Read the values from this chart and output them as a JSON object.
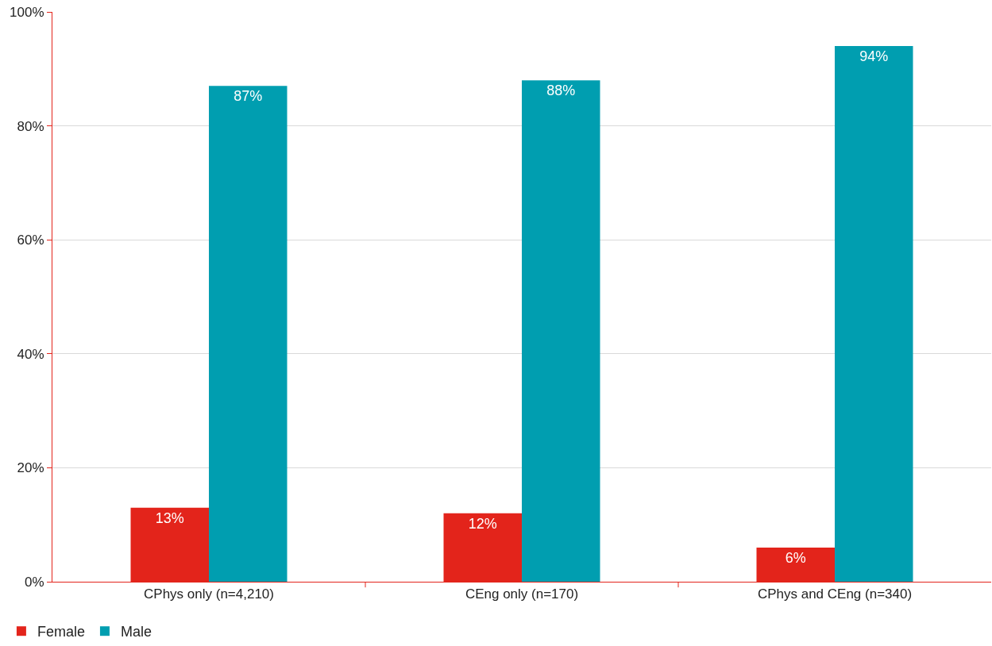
{
  "chart_data": {
    "type": "bar",
    "categories": [
      "CPhys only (n=4,210)",
      "CEng only (n=170)",
      "CPhys and CEng (n=340)"
    ],
    "series": [
      {
        "name": "Female",
        "color": "#e3241b",
        "values": [
          13,
          12,
          6
        ],
        "value_labels": [
          "13%",
          "12%",
          "6%"
        ]
      },
      {
        "name": "Male",
        "color": "#009eb0",
        "values": [
          87,
          88,
          94
        ],
        "value_labels": [
          "87%",
          "88%",
          "94%"
        ]
      }
    ],
    "ylim": [
      0,
      100
    ],
    "yticks": [
      {
        "value": 0,
        "label": "0%"
      },
      {
        "value": 20,
        "label": "20%"
      },
      {
        "value": 40,
        "label": "40%"
      },
      {
        "value": 60,
        "label": "60%"
      },
      {
        "value": 80,
        "label": "80%"
      },
      {
        "value": 100,
        "label": "100%"
      }
    ],
    "grid": "y",
    "legend": "bottom left"
  }
}
